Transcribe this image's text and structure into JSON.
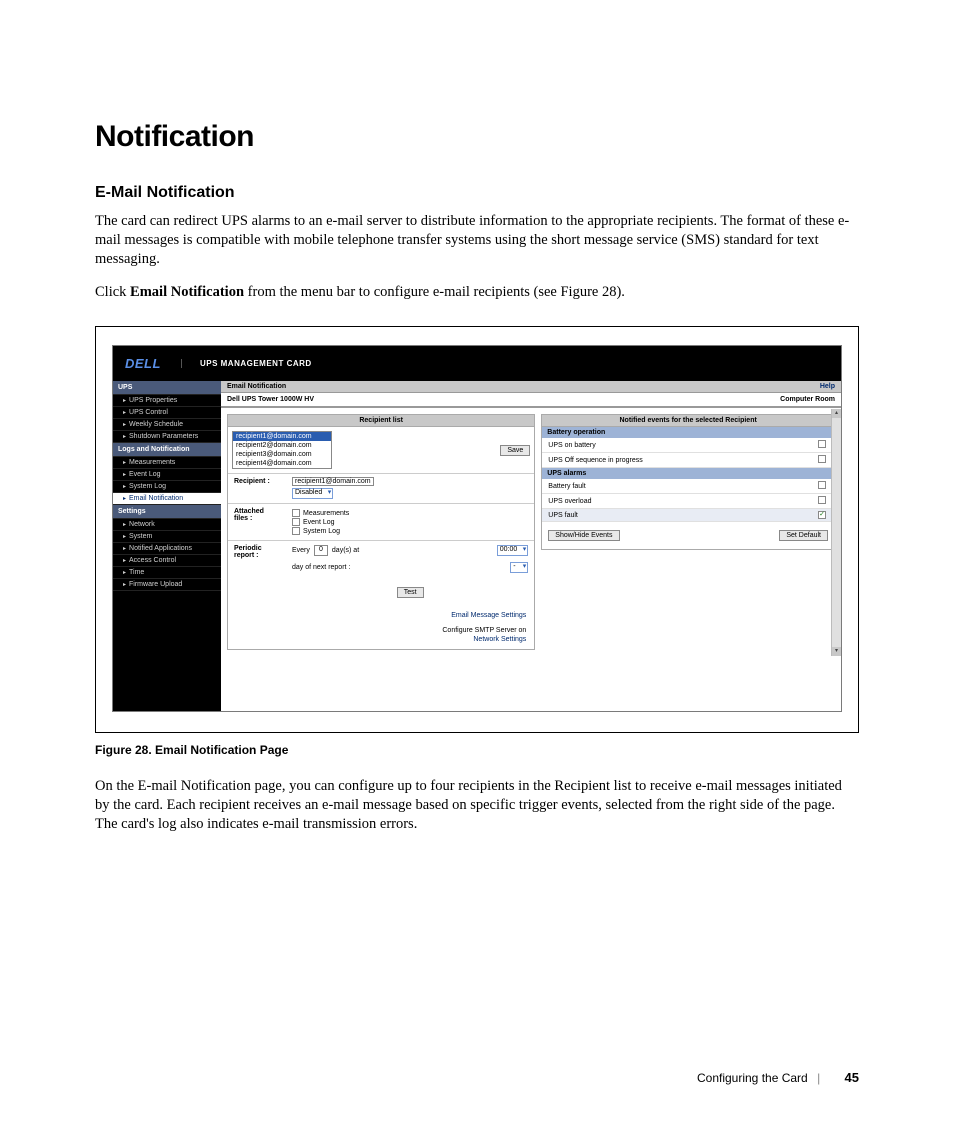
{
  "heading": "Notification",
  "subheading": "E-Mail Notification",
  "para1": "The card can redirect UPS alarms to an e-mail server to distribute information to the appropriate recipients. The format of these e-mail messages is compatible with mobile telephone transfer systems using the short message service (SMS) standard for text messaging.",
  "para2_pre": "Click ",
  "para2_bold": "Email Notification",
  "para2_post": " from the menu bar to configure e-mail recipients (see Figure 28).",
  "figure_caption": "Figure 28. Email Notification Page",
  "para3": "On the E-mail Notification page, you can configure up to four recipients in the Recipient list to receive e-mail messages initiated by the card. Each recipient receives an e-mail message based on specific trigger events, selected from the right side of the page. The card's log also indicates e-mail transmission errors.",
  "footer_section": "Configuring the Card",
  "footer_page": "45",
  "ui": {
    "logo_text": "DELL",
    "header_title": "UPS MANAGEMENT CARD",
    "sidebar": {
      "groups": [
        {
          "title": "UPS",
          "items": [
            "UPS Properties",
            "UPS Control",
            "Weekly Schedule",
            "Shutdown Parameters"
          ]
        },
        {
          "title": "Logs and Notification",
          "items": [
            "Measurements",
            "Event Log",
            "System Log",
            "Email Notification"
          ],
          "active_index": 3
        },
        {
          "title": "Settings",
          "items": [
            "Network",
            "System",
            "Notified Applications",
            "Access Control",
            "Time",
            "Firmware Upload"
          ]
        }
      ]
    },
    "breadcrumb": "Email Notification",
    "help_label": "Help",
    "device_name": "Dell UPS Tower 1000W HV",
    "device_location": "Computer Room",
    "left": {
      "panel_title": "Recipient list",
      "recipients": [
        "recipient1@domain.com",
        "recipient2@domain.com",
        "recipient3@domain.com",
        "recipient4@domain.com"
      ],
      "selected_recipient_index": 0,
      "save_btn": "Save",
      "recipient_label": "Recipient :",
      "recipient_value": "recipient1@domain.com",
      "recipient_status": "Disabled",
      "attached_label1": "Attached",
      "attached_label2": "files :",
      "attached_opts": [
        "Measurements",
        "Event Log",
        "System Log"
      ],
      "periodic_label1": "Periodic",
      "periodic_label2": "report :",
      "periodic_every": "Every",
      "periodic_days_value": "0",
      "periodic_days_suffix": "day(s) at",
      "periodic_time": "00:00",
      "periodic_next": "day of next report :",
      "periodic_next_value": "-",
      "test_btn": "Test",
      "link1": "Email Message Settings",
      "link2_pre": "Configure SMTP Server on",
      "link2": "Network Settings"
    },
    "right": {
      "panel_title": "Notified events for the selected Recipient",
      "sections": [
        {
          "header": "Battery operation",
          "rows": [
            {
              "label": "UPS on battery",
              "checked": false
            },
            {
              "label": "UPS Off sequence in progress",
              "checked": false
            }
          ]
        },
        {
          "header": "UPS alarms",
          "rows": [
            {
              "label": "Battery fault",
              "checked": false
            },
            {
              "label": "UPS overload",
              "checked": false
            },
            {
              "label": "UPS fault",
              "checked": true,
              "alt": true
            }
          ]
        }
      ],
      "show_hide_btn": "Show/Hide Events",
      "set_default_btn": "Set Default"
    }
  }
}
